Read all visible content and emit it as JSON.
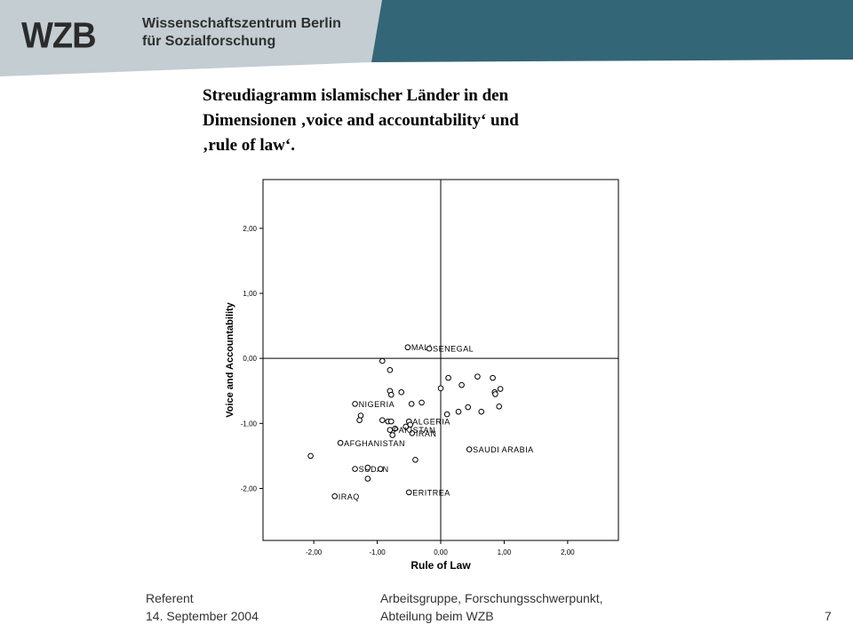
{
  "header": {
    "logo": "WZB",
    "institution_line1": "Wissenschaftszentrum Berlin",
    "institution_line2": "für Sozialforschung",
    "colors": {
      "grey_band": "#c3cdd2",
      "teal_band": "#336677"
    }
  },
  "title_lines": [
    "Streudiagramm islamischer Länder in den",
    "Dimensionen ‚voice and accountability‘ und",
    "‚rule of law‘."
  ],
  "chart_data": {
    "type": "scatter",
    "xlabel": "Rule of Law",
    "ylabel": "Voice and Accountability",
    "xlim": [
      -2.8,
      2.8
    ],
    "ylim": [
      -2.8,
      2.75
    ],
    "xticks": [
      -2.0,
      -1.0,
      0.0,
      1.0,
      2.0
    ],
    "yticks": [
      -2.0,
      -1.0,
      0.0,
      1.0,
      2.0
    ],
    "xtick_labels": [
      "-2,00",
      "-1,00",
      "0,00",
      "1,00",
      "2,00"
    ],
    "ytick_labels": [
      "-2,00",
      "-1,00",
      "0,00",
      "1,00",
      "2,00"
    ],
    "reference_lines": {
      "x": 0.0,
      "y": 0.0
    },
    "points": [
      {
        "x": -0.52,
        "y": 0.17,
        "label": "MALI"
      },
      {
        "x": -0.18,
        "y": 0.15,
        "label": "SENEGAL"
      },
      {
        "x": -0.92,
        "y": -0.04,
        "label": ""
      },
      {
        "x": -0.8,
        "y": -0.18,
        "label": ""
      },
      {
        "x": -0.8,
        "y": -0.5,
        "label": ""
      },
      {
        "x": -0.78,
        "y": -0.56,
        "label": ""
      },
      {
        "x": -0.62,
        "y": -0.52,
        "label": ""
      },
      {
        "x": -0.46,
        "y": -0.7,
        "label": ""
      },
      {
        "x": -0.3,
        "y": -0.68,
        "label": ""
      },
      {
        "x": 0.0,
        "y": -0.46,
        "label": ""
      },
      {
        "x": 0.12,
        "y": -0.3,
        "label": ""
      },
      {
        "x": 0.33,
        "y": -0.41,
        "label": ""
      },
      {
        "x": 0.58,
        "y": -0.28,
        "label": ""
      },
      {
        "x": 0.82,
        "y": -0.3,
        "label": ""
      },
      {
        "x": 0.85,
        "y": -0.52,
        "label": ""
      },
      {
        "x": 0.86,
        "y": -0.55,
        "label": ""
      },
      {
        "x": 0.94,
        "y": -0.47,
        "label": ""
      },
      {
        "x": 0.92,
        "y": -0.74,
        "label": ""
      },
      {
        "x": 0.64,
        "y": -0.82,
        "label": ""
      },
      {
        "x": 0.43,
        "y": -0.75,
        "label": ""
      },
      {
        "x": 0.28,
        "y": -0.82,
        "label": ""
      },
      {
        "x": 0.1,
        "y": -0.86,
        "label": ""
      },
      {
        "x": -1.35,
        "y": -0.7,
        "label": "NIGERIA"
      },
      {
        "x": -1.26,
        "y": -0.88,
        "label": ""
      },
      {
        "x": -1.28,
        "y": -0.95,
        "label": ""
      },
      {
        "x": -0.92,
        "y": -0.95,
        "label": ""
      },
      {
        "x": -0.83,
        "y": -0.97,
        "label": ""
      },
      {
        "x": -0.78,
        "y": -0.97,
        "label": ""
      },
      {
        "x": -0.72,
        "y": -1.08,
        "label": ""
      },
      {
        "x": -0.76,
        "y": -1.18,
        "label": ""
      },
      {
        "x": -0.55,
        "y": -1.05,
        "label": ""
      },
      {
        "x": -0.5,
        "y": -0.97,
        "label": "ALGERIA"
      },
      {
        "x": -0.48,
        "y": -1.02,
        "label": ""
      },
      {
        "x": -0.45,
        "y": -1.15,
        "label": "IRAN"
      },
      {
        "x": -0.8,
        "y": -1.1,
        "label": "PAKISTAN"
      },
      {
        "x": -1.58,
        "y": -1.3,
        "label": "AFGHANISTAN"
      },
      {
        "x": -2.05,
        "y": -1.5,
        "label": ""
      },
      {
        "x": -1.35,
        "y": -1.7,
        "label": "SUDAN"
      },
      {
        "x": -1.15,
        "y": -1.68,
        "label": ""
      },
      {
        "x": -0.95,
        "y": -1.7,
        "label": ""
      },
      {
        "x": -1.15,
        "y": -1.85,
        "label": ""
      },
      {
        "x": -0.4,
        "y": -1.56,
        "label": ""
      },
      {
        "x": 0.45,
        "y": -1.4,
        "label": "SAUDI ARABIA"
      },
      {
        "x": -0.5,
        "y": -2.06,
        "label": "ERITREA"
      },
      {
        "x": -1.67,
        "y": -2.12,
        "label": "IRAQ"
      }
    ]
  },
  "footer": {
    "left_line1": "Referent",
    "left_line2": "14. September 2004",
    "mid_line1": "Arbeitsgruppe, Forschungsschwerpunkt,",
    "mid_line2": "Abteilung beim WZB",
    "page_number": "7"
  }
}
